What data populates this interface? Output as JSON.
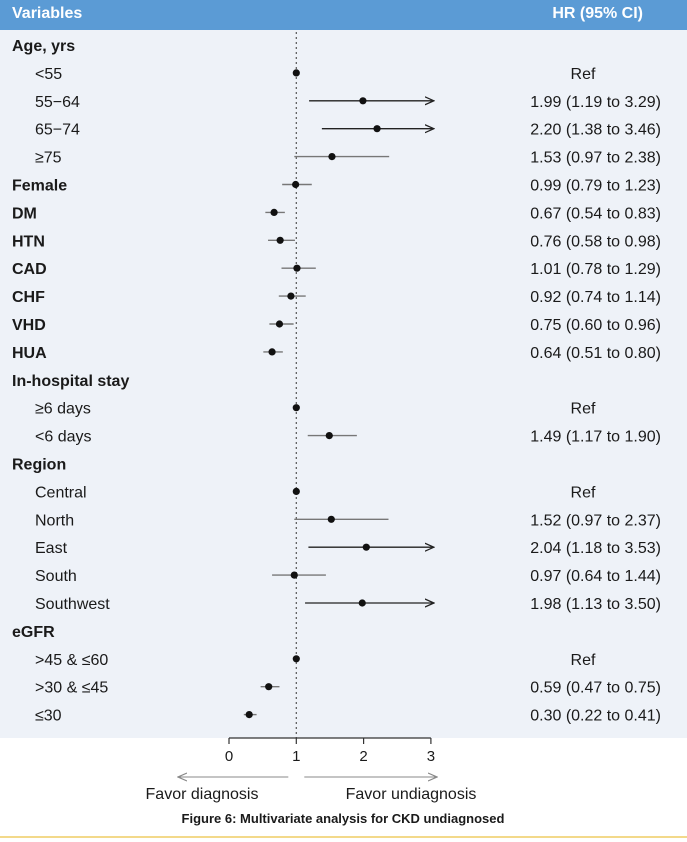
{
  "header": {
    "variables_label": "Variables",
    "hr_label": "HR (95% CI)"
  },
  "chart_data": {
    "type": "forest",
    "x_ticks": [
      0,
      1,
      2,
      3
    ],
    "xlim": [
      0,
      3
    ],
    "reference_line": 1,
    "left_arrow_label": "Favor diagnosis",
    "right_arrow_label": "Favor undiagnosis",
    "caption": "Figure 6: Multivariate analysis for CKD undiagnosed",
    "rows": [
      {
        "label": "Age, yrs",
        "header": true
      },
      {
        "label": "<55",
        "ref": true,
        "ci_text": "Ref",
        "hr": 1
      },
      {
        "label": "55−64",
        "hr": 1.99,
        "lo": 1.19,
        "hi": 3.29,
        "ci_text": "1.99 (1.19 to 3.29)"
      },
      {
        "label": "65−74",
        "hr": 2.2,
        "lo": 1.38,
        "hi": 3.46,
        "ci_text": "2.20 (1.38 to 3.46)"
      },
      {
        "label": "≥75",
        "hr": 1.53,
        "lo": 0.97,
        "hi": 2.38,
        "ci_text": "1.53 (0.97 to 2.38)"
      },
      {
        "label": "Female",
        "bold": true,
        "hr": 0.99,
        "lo": 0.79,
        "hi": 1.23,
        "ci_text": "0.99 (0.79 to 1.23)"
      },
      {
        "label": "DM",
        "bold": true,
        "hr": 0.67,
        "lo": 0.54,
        "hi": 0.83,
        "ci_text": "0.67 (0.54 to 0.83)"
      },
      {
        "label": "HTN",
        "bold": true,
        "hr": 0.76,
        "lo": 0.58,
        "hi": 0.98,
        "ci_text": "0.76 (0.58 to 0.98)"
      },
      {
        "label": "CAD",
        "bold": true,
        "hr": 1.01,
        "lo": 0.78,
        "hi": 1.29,
        "ci_text": "1.01 (0.78 to 1.29)"
      },
      {
        "label": "CHF",
        "bold": true,
        "hr": 0.92,
        "lo": 0.74,
        "hi": 1.14,
        "ci_text": "0.92 (0.74 to 1.14)"
      },
      {
        "label": "VHD",
        "bold": true,
        "hr": 0.75,
        "lo": 0.6,
        "hi": 0.96,
        "ci_text": "0.75 (0.60 to 0.96)"
      },
      {
        "label": "HUA",
        "bold": true,
        "hr": 0.64,
        "lo": 0.51,
        "hi": 0.8,
        "ci_text": "0.64 (0.51 to 0.80)"
      },
      {
        "label": "In-hospital stay",
        "header": true
      },
      {
        "label": "≥6 days",
        "ref": true,
        "ci_text": "Ref",
        "hr": 1
      },
      {
        "label": "<6 days",
        "hr": 1.49,
        "lo": 1.17,
        "hi": 1.9,
        "ci_text": "1.49 (1.17 to 1.90)"
      },
      {
        "label": "Region",
        "header": true
      },
      {
        "label": "Central",
        "ref": true,
        "ci_text": "Ref",
        "hr": 1
      },
      {
        "label": "North",
        "hr": 1.52,
        "lo": 0.97,
        "hi": 2.37,
        "ci_text": "1.52 (0.97 to 2.37)"
      },
      {
        "label": "East",
        "hr": 2.04,
        "lo": 1.18,
        "hi": 3.53,
        "ci_text": "2.04 (1.18 to 3.53)"
      },
      {
        "label": "South",
        "hr": 0.97,
        "lo": 0.64,
        "hi": 1.44,
        "ci_text": "0.97 (0.64 to 1.44)"
      },
      {
        "label": "Southwest",
        "hr": 1.98,
        "lo": 1.13,
        "hi": 3.5,
        "ci_text": "1.98 (1.13 to 3.50)"
      },
      {
        "label": "eGFR",
        "header": true
      },
      {
        "label": ">45 & ≤60",
        "ref": true,
        "ci_text": "Ref",
        "hr": 1
      },
      {
        "label": ">30 & ≤45",
        "hr": 0.59,
        "lo": 0.47,
        "hi": 0.75,
        "ci_text": "0.59 (0.47 to 0.75)"
      },
      {
        "label": "≤30",
        "hr": 0.3,
        "lo": 0.22,
        "hi": 0.41,
        "ci_text": "0.30 (0.22 to 0.41)"
      }
    ]
  }
}
